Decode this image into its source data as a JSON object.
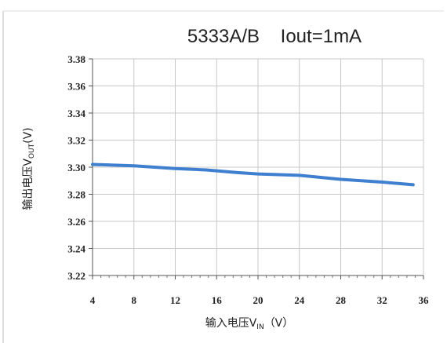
{
  "chart_data": {
    "type": "line",
    "title": "5333A/B    Iout=1mA",
    "xlabel": "输入电压VIN（V）",
    "xlabel_parts": {
      "prefix": "输入电压V",
      "subscript": "IN",
      "suffix": "（V）"
    },
    "ylabel": "输出电压VOUT(V)",
    "ylabel_parts": {
      "prefix": "输出电压V",
      "subscript": "OUT",
      "suffix": "(V)"
    },
    "xlim": [
      4,
      36
    ],
    "ylim": [
      3.22,
      3.38
    ],
    "x_ticks": [
      4,
      8,
      12,
      16,
      20,
      24,
      28,
      32,
      36
    ],
    "y_ticks": [
      3.22,
      3.24,
      3.26,
      3.28,
      3.3,
      3.32,
      3.34,
      3.36,
      3.38
    ],
    "x_tick_labels": [
      "4",
      "8",
      "12",
      "16",
      "20",
      "24",
      "28",
      "32",
      "36"
    ],
    "y_tick_labels": [
      "3.22",
      "3.24",
      "3.26",
      "3.28",
      "3.30",
      "3.32",
      "3.34",
      "3.36",
      "3.38"
    ],
    "grid": true,
    "legend": "none",
    "series": [
      {
        "color": "#3f7fcf",
        "x": [
          4,
          8,
          12,
          15,
          18,
          20,
          24,
          28,
          32,
          35
        ],
        "y": [
          3.302,
          3.301,
          3.299,
          3.298,
          3.296,
          3.295,
          3.294,
          3.291,
          3.289,
          3.287
        ]
      }
    ]
  }
}
